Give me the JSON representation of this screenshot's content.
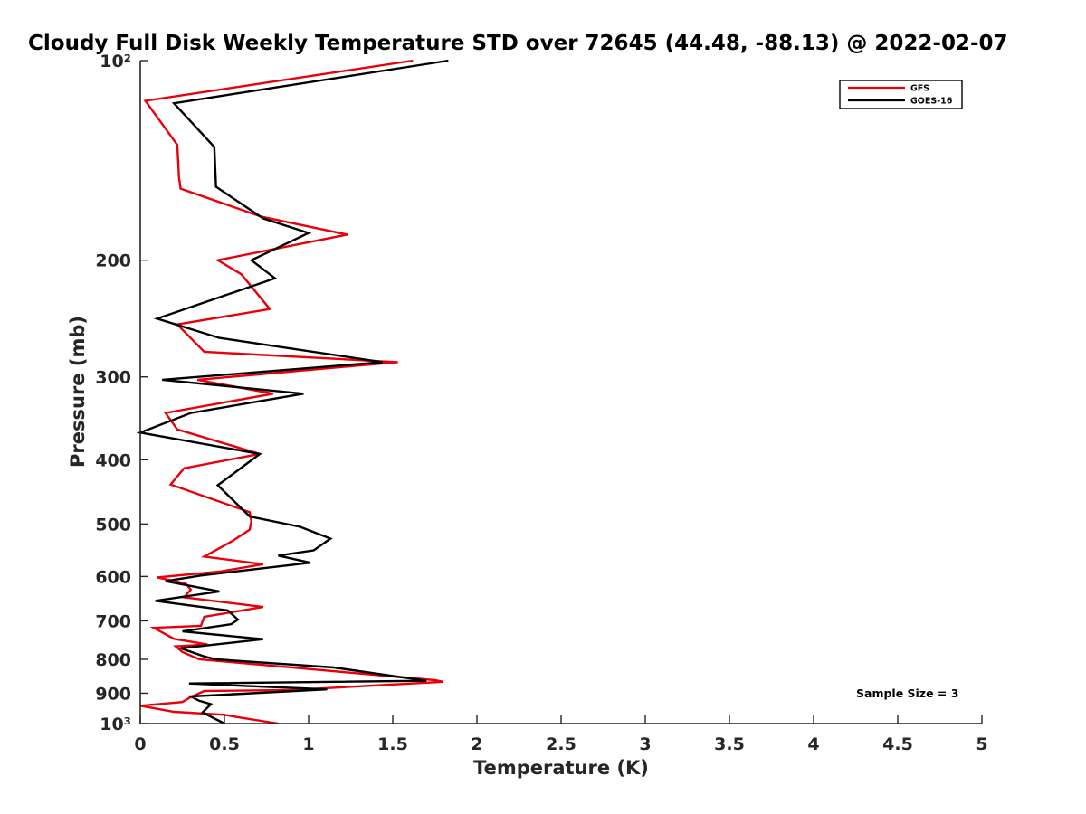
{
  "chart_data": {
    "type": "line",
    "title": "Cloudy Full Disk Weekly Temperature STD over 72645 (44.48, -88.13) @ 2022-02-07",
    "xlabel": "Temperature (K)",
    "ylabel": "Pressure (mb)",
    "xlim": [
      0,
      5
    ],
    "ylim": [
      1000,
      100
    ],
    "yscale": "log",
    "y_reversed": true,
    "x_ticks": [
      0,
      0.5,
      1,
      1.5,
      2,
      2.5,
      3,
      3.5,
      4,
      4.5,
      5
    ],
    "x_tick_labels": [
      "0",
      "0.5",
      "1",
      "1.5",
      "2",
      "2.5",
      "3",
      "3.5",
      "4",
      "4.5",
      "5"
    ],
    "y_ticks": [
      100,
      200,
      300,
      400,
      500,
      600,
      700,
      800,
      900,
      1000
    ],
    "y_tick_labels": [
      "10²",
      "200",
      "300",
      "400",
      "500",
      "600",
      "700",
      "800",
      "900",
      "10³"
    ],
    "grid": false,
    "legend_position": "top-right",
    "annotation": "Sample Size = 3",
    "series": [
      {
        "name": "GFS",
        "color": "#e8000b",
        "x": [
          1.62,
          0.03,
          0.22,
          0.23,
          0.24,
          0.72,
          1.23,
          0.46,
          0.6,
          0.77,
          0.22,
          0.38,
          1.53,
          0.34,
          0.79,
          0.15,
          0.22,
          0.71,
          0.26,
          0.18,
          0.65,
          0.66,
          0.65,
          0.55,
          0.38,
          0.73,
          0.47,
          0.1,
          0.27,
          0.3,
          0.26,
          0.73,
          0.38,
          0.36,
          0.08,
          0.2,
          0.4,
          0.21,
          0.25,
          0.35,
          0.95,
          1.75,
          1.8,
          0.9,
          0.38,
          0.3,
          0.25,
          0.0,
          0.2,
          0.5,
          0.6,
          0.82
        ],
        "y": [
          100,
          115,
          134,
          150,
          156,
          172,
          183,
          200,
          210,
          237,
          250,
          275,
          285,
          303,
          318,
          340,
          360,
          392,
          412,
          436,
          480,
          495,
          510,
          530,
          560,
          575,
          590,
          602,
          615,
          628,
          645,
          667,
          690,
          712,
          717,
          745,
          760,
          765,
          780,
          800,
          825,
          860,
          865,
          890,
          893,
          912,
          928,
          940,
          960,
          970,
          980,
          1000
        ]
      },
      {
        "name": "GOES-16",
        "color": "#000000",
        "x": [
          1.83,
          0.2,
          0.44,
          0.45,
          0.73,
          1.0,
          0.66,
          0.8,
          0.1,
          0.47,
          1.44,
          0.13,
          0.97,
          0.3,
          0.0,
          0.71,
          0.58,
          0.46,
          0.65,
          0.95,
          1.13,
          1.03,
          0.82,
          1.01,
          0.36,
          0.15,
          0.47,
          0.09,
          0.52,
          0.58,
          0.54,
          0.25,
          0.73,
          0.24,
          0.38,
          0.45,
          1.15,
          1.7,
          0.29,
          0.74,
          1.11,
          0.3,
          0.35,
          0.42,
          0.37,
          0.5
        ],
        "y": [
          100,
          116,
          135,
          155,
          173,
          182,
          200,
          213,
          245,
          262,
          285,
          303,
          318,
          340,
          364,
          392,
          415,
          437,
          487,
          505,
          526,
          548,
          558,
          572,
          598,
          610,
          632,
          653,
          675,
          697,
          708,
          726,
          746,
          770,
          792,
          800,
          823,
          862,
          870,
          880,
          888,
          910,
          924,
          935,
          962,
          1000
        ]
      }
    ]
  }
}
